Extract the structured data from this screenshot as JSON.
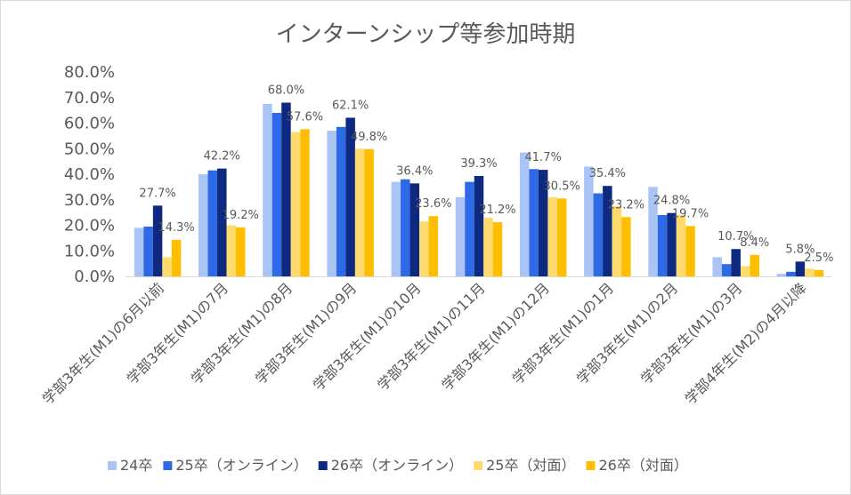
{
  "chart_data": {
    "type": "bar",
    "title": "インターンシップ等参加時期",
    "xlabel": "",
    "ylabel": "",
    "ylim": [
      0,
      80
    ],
    "y_ticks": [
      "0.0%",
      "10.0%",
      "20.0%",
      "30.0%",
      "40.0%",
      "50.0%",
      "60.0%",
      "70.0%",
      "80.0%"
    ],
    "grid": false,
    "legend_position": "bottom",
    "categories": [
      "学部3年生(M1)の6月以前",
      "学部3年生(M1)の7月",
      "学部3年生(M1)の8月",
      "学部3年生(M1)の9月",
      "学部3年生(M1)の10月",
      "学部3年生(M1)の11月",
      "学部3年生(M1)の12月",
      "学部3年生(M1)の1月",
      "学部3年生(M1)の2月",
      "学部3年生(M1)の3月",
      "学部4年生(M2)の4月以降"
    ],
    "series": [
      {
        "name": "24卒",
        "color": "#a9c4f5",
        "values": [
          19.0,
          40.0,
          67.5,
          57.0,
          37.0,
          31.0,
          48.5,
          43.0,
          35.0,
          7.5,
          1.0
        ]
      },
      {
        "name": "25卒（オンライン）",
        "color": "#2f6ae6",
        "values": [
          19.5,
          41.5,
          64.0,
          58.5,
          38.0,
          37.0,
          42.0,
          32.5,
          24.0,
          4.8,
          1.8
        ]
      },
      {
        "name": "26卒（オンライン）",
        "color": "#0d2a80",
        "values": [
          27.7,
          42.2,
          68.0,
          62.1,
          36.4,
          39.3,
          41.7,
          35.4,
          24.8,
          10.7,
          5.8
        ]
      },
      {
        "name": "25卒（対面）",
        "color": "#ffdb6e",
        "values": [
          7.5,
          20.0,
          56.5,
          50.0,
          21.5,
          23.0,
          31.0,
          27.5,
          24.0,
          4.0,
          3.0
        ]
      },
      {
        "name": "26卒（対面）",
        "color": "#ffbf00",
        "values": [
          14.3,
          19.2,
          57.6,
          49.8,
          23.6,
          21.2,
          30.5,
          23.2,
          19.7,
          8.4,
          2.5
        ]
      }
    ],
    "data_labels": [
      {
        "series": 2,
        "category": 0,
        "text": "27.7%"
      },
      {
        "series": 4,
        "category": 0,
        "text": "14.3%"
      },
      {
        "series": 2,
        "category": 1,
        "text": "42.2%"
      },
      {
        "series": 4,
        "category": 1,
        "text": "19.2%"
      },
      {
        "series": 2,
        "category": 2,
        "text": "68.0%"
      },
      {
        "series": 4,
        "category": 2,
        "text": "57.6%"
      },
      {
        "series": 2,
        "category": 3,
        "text": "62.1%"
      },
      {
        "series": 4,
        "category": 3,
        "text": "49.8%"
      },
      {
        "series": 2,
        "category": 4,
        "text": "36.4%"
      },
      {
        "series": 4,
        "category": 4,
        "text": "23.6%"
      },
      {
        "series": 2,
        "category": 5,
        "text": "39.3%"
      },
      {
        "series": 4,
        "category": 5,
        "text": "21.2%"
      },
      {
        "series": 2,
        "category": 6,
        "text": "41.7%"
      },
      {
        "series": 4,
        "category": 6,
        "text": "30.5%"
      },
      {
        "series": 2,
        "category": 7,
        "text": "35.4%"
      },
      {
        "series": 4,
        "category": 7,
        "text": "23.2%"
      },
      {
        "series": 2,
        "category": 8,
        "text": "24.8%"
      },
      {
        "series": 4,
        "category": 8,
        "text": "19.7%"
      },
      {
        "series": 2,
        "category": 9,
        "text": "10.7%"
      },
      {
        "series": 4,
        "category": 9,
        "text": "8.4%"
      },
      {
        "series": 2,
        "category": 10,
        "text": "5.8%"
      },
      {
        "series": 4,
        "category": 10,
        "text": "2.5%"
      }
    ]
  }
}
